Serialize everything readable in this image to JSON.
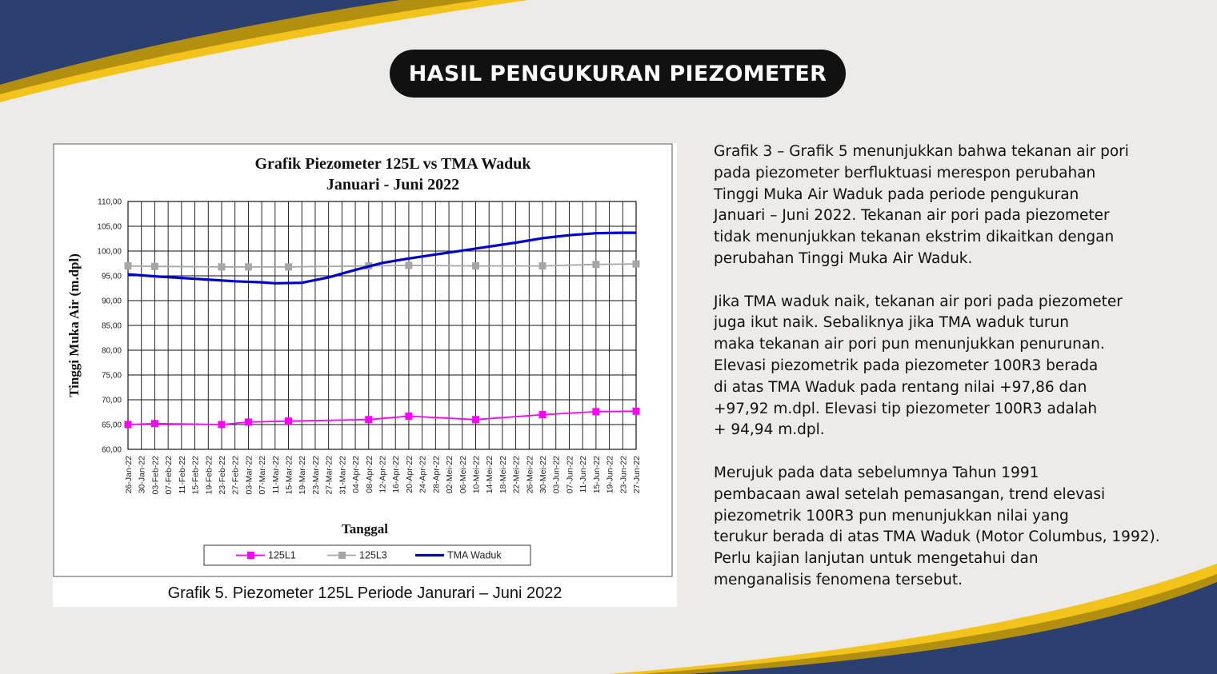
{
  "page_title": "HASIL PENGUKURAN PIEZOMETER",
  "paragraphs": [
    "Grafik 3 – Grafik 5 menunjukkan bahwa tekanan air pori\npada piezometer berfluktuasi merespon perubahan\nTinggi Muka Air Waduk pada periode pengukuran\nJanuari – Juni 2022. Tekanan air pori pada piezometer\ntidak menunjukkan tekanan ekstrim dikaitkan dengan\nperubahan Tinggi Muka Air Waduk.",
    "Jika TMA waduk naik, tekanan air pori pada piezometer\njuga ikut naik. Sebaliknya jika TMA waduk turun\nmaka tekanan air pori pun menunjukkan penurunan.\nElevasi piezometrik pada piezometer 100R3 berada\ndi atas TMA Waduk pada rentang nilai +97,86 dan\n+97,92 m.dpl. Elevasi tip piezometer 100R3 adalah\n+ 94,94 m.dpl.",
    "Merujuk pada data sebelumnya Tahun 1991\npembacaan awal setelah pemasangan, trend elevasi\npiezometrik 100R3 pun menunjukkan nilai yang\nterukur berada di atas TMA Waduk (Motor Columbus, 1992).\nPerlu kajian lanjutan untuk mengetahui dan\nmenganalisis fenomena tersebut."
  ],
  "caption": "Grafik 5. Piezometer 125L Periode Janurari – Juni 2022",
  "colors": {
    "navy": "#2b3f70",
    "gold": "#f2c31b",
    "gold_dark": "#b38f10",
    "series_125L1": "#ff00ff",
    "series_125L3": "#a6a6a6",
    "series_tma": "#0000cc"
  },
  "chart_data": {
    "type": "line",
    "title": "Grafik Piezometer 125L vs TMA Waduk",
    "subtitle": "Januari - Juni 2022",
    "xlabel": "Tanggal",
    "ylabel": "Tinggi Muka Air (m.dpl)",
    "ylim": [
      60,
      110
    ],
    "ytick_step": 5,
    "ytick_labels": [
      "60,00",
      "65,00",
      "70,00",
      "75,00",
      "80,00",
      "85,00",
      "90,00",
      "95,00",
      "100,00",
      "105,00",
      "110,00"
    ],
    "grid": true,
    "legend_position": "bottom",
    "categories": [
      "26-Jan-22",
      "30-Jan-22",
      "03-Feb-22",
      "07-Feb-22",
      "11-Feb-22",
      "15-Feb-22",
      "19-Feb-22",
      "23-Feb-22",
      "27-Feb-22",
      "03-Mar-22",
      "07-Mar-22",
      "11-Mar-22",
      "15-Mar-22",
      "19-Mar-22",
      "23-Mar-22",
      "27-Mar-22",
      "31-Mar-22",
      "04-Apr-22",
      "08-Apr-22",
      "12-Apr-22",
      "16-Apr-22",
      "20-Apr-22",
      "24-Apr-22",
      "28-Apr-22",
      "02-Mei-22",
      "06-Mei-22",
      "10-Mei-22",
      "14-Mei-22",
      "18-Mei-22",
      "22-Mei-22",
      "26-Mei-22",
      "30-Mei-22",
      "03-Jun-22",
      "07-Jun-22",
      "11-Jun-22",
      "15-Jun-22",
      "19-Jun-22",
      "23-Jun-22",
      "27-Jun-22"
    ],
    "series": [
      {
        "name": "125L1",
        "marker": "square",
        "points": [
          [
            0,
            65.0
          ],
          [
            2,
            65.2
          ],
          [
            7,
            65.0
          ],
          [
            9,
            65.5
          ],
          [
            12,
            65.7
          ],
          [
            18,
            66.0
          ],
          [
            21,
            66.7
          ],
          [
            26,
            66.0
          ],
          [
            31,
            67.0
          ],
          [
            35,
            67.6
          ],
          [
            38,
            67.7
          ]
        ]
      },
      {
        "name": "125L3",
        "marker": "square",
        "points": [
          [
            0,
            97.0
          ],
          [
            2,
            96.9
          ],
          [
            7,
            96.8
          ],
          [
            9,
            96.8
          ],
          [
            12,
            96.8
          ],
          [
            18,
            97.0
          ],
          [
            21,
            97.1
          ],
          [
            26,
            97.0
          ],
          [
            31,
            97.0
          ],
          [
            35,
            97.3
          ],
          [
            38,
            97.4
          ]
        ]
      },
      {
        "name": "TMA Waduk",
        "marker": "none",
        "points": [
          [
            0,
            95.3
          ],
          [
            2,
            94.9
          ],
          [
            5,
            94.4
          ],
          [
            8,
            93.9
          ],
          [
            10,
            93.7
          ],
          [
            11,
            93.5
          ],
          [
            13,
            93.6
          ],
          [
            15,
            94.7
          ],
          [
            17,
            96.2
          ],
          [
            19,
            97.6
          ],
          [
            21,
            98.5
          ],
          [
            23,
            99.3
          ],
          [
            25,
            100.1
          ],
          [
            27,
            100.9
          ],
          [
            29,
            101.7
          ],
          [
            31,
            102.6
          ],
          [
            33,
            103.2
          ],
          [
            35,
            103.6
          ],
          [
            37,
            103.7
          ],
          [
            38,
            103.7
          ]
        ]
      }
    ]
  }
}
